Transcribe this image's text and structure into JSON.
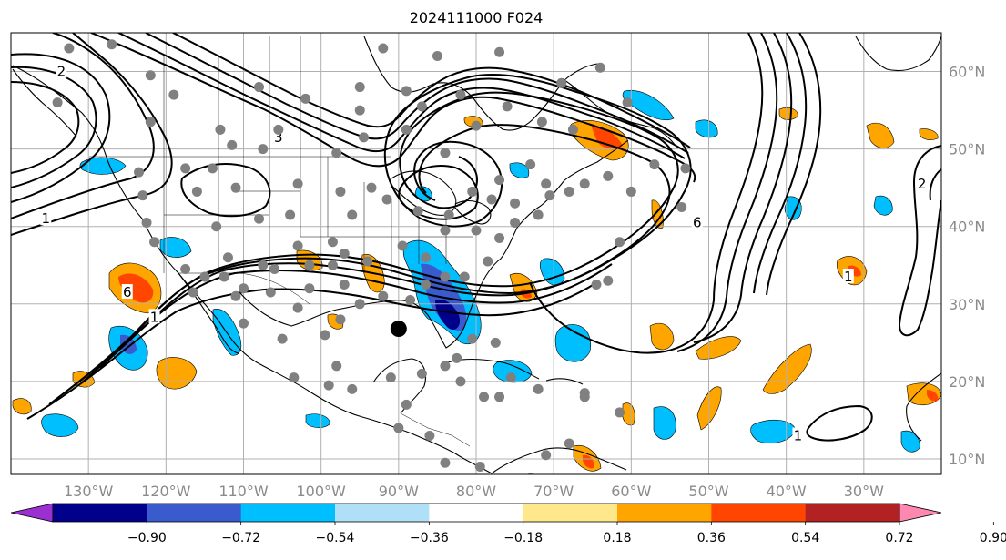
{
  "figure": {
    "title": "2024111000 F024"
  },
  "map": {
    "projection": "lat-lon",
    "lon_range": [
      -140,
      -20
    ],
    "lat_range": [
      8,
      65
    ],
    "gridlines": true,
    "lon_ticks": [
      {
        "value": -130,
        "label": "130°W"
      },
      {
        "value": -120,
        "label": "120°W"
      },
      {
        "value": -110,
        "label": "110°W"
      },
      {
        "value": -100,
        "label": "100°W"
      },
      {
        "value": -90,
        "label": "90°W"
      },
      {
        "value": -80,
        "label": "80°W"
      },
      {
        "value": -70,
        "label": "70°W"
      },
      {
        "value": -60,
        "label": "60°W"
      },
      {
        "value": -50,
        "label": "50°W"
      },
      {
        "value": -40,
        "label": "40°W"
      },
      {
        "value": -30,
        "label": "30°W"
      }
    ],
    "lat_ticks": [
      {
        "value": 60,
        "label": "60°N"
      },
      {
        "value": 50,
        "label": "50°N"
      },
      {
        "value": 40,
        "label": "40°N"
      },
      {
        "value": 30,
        "label": "30°N"
      },
      {
        "value": 20,
        "label": "20°N"
      },
      {
        "value": 10,
        "label": "10°N"
      }
    ],
    "marker": {
      "lon": -90.0,
      "lat": 26.8,
      "color": "#000000"
    },
    "contour_labels": [
      {
        "text": "3",
        "lon": -105.5,
        "lat": 51.5
      },
      {
        "text": "6",
        "lon": -125.0,
        "lat": 31.5
      },
      {
        "text": "1",
        "lon": -121.5,
        "lat": 28.3
      },
      {
        "text": "1",
        "lon": -135.5,
        "lat": 41.0
      },
      {
        "text": "2",
        "lon": -133.5,
        "lat": 60.0
      },
      {
        "text": "6",
        "lon": -51.5,
        "lat": 40.5
      },
      {
        "text": "1",
        "lon": -32.0,
        "lat": 33.5
      },
      {
        "text": "2",
        "lon": -22.5,
        "lat": 45.5
      },
      {
        "text": "1",
        "lon": -38.5,
        "lat": 13.0
      }
    ],
    "colors": {
      "background": "#ffffff",
      "grid": "#b0b0b0",
      "coast": "#000000",
      "contour": "#000000",
      "station": "#808080"
    }
  },
  "colorbar": {
    "levels": [
      -0.9,
      -0.72,
      -0.54,
      -0.36,
      -0.18,
      0.18,
      0.36,
      0.54,
      0.72,
      0.9
    ],
    "tick_labels": [
      "−0.90",
      "−0.72",
      "−0.54",
      "−0.36",
      "−0.18",
      "0.18",
      "0.36",
      "0.54",
      "0.72",
      "0.90"
    ],
    "colors": [
      "#9b30d0",
      "#00008b",
      "#3a5bcd",
      "#00bfff",
      "#b0e0f8",
      "#ffffff",
      "#ffe88c",
      "#ffa500",
      "#ff4500",
      "#b22222",
      "#ff88b0"
    ],
    "extend": "both"
  },
  "stations": [
    [
      -132.5,
      63
    ],
    [
      -127,
      63.5
    ],
    [
      -122,
      59.5
    ],
    [
      -134,
      56
    ],
    [
      -119,
      57
    ],
    [
      -122,
      53.5
    ],
    [
      -113,
      52.5
    ],
    [
      -107.5,
      50
    ],
    [
      -114,
      47.5
    ],
    [
      -116,
      44.5
    ],
    [
      -111,
      45
    ],
    [
      -113.5,
      40
    ],
    [
      -108,
      41
    ],
    [
      -103,
      45.5
    ],
    [
      -104,
      41.5
    ],
    [
      -97.5,
      44.5
    ],
    [
      -96,
      41.5
    ],
    [
      -97,
      36.5
    ],
    [
      -98.5,
      35
    ],
    [
      -101.5,
      35
    ],
    [
      -106,
      34.5
    ],
    [
      -110,
      32
    ],
    [
      -115,
      33.5
    ],
    [
      -117.5,
      34.5
    ],
    [
      -121.5,
      38
    ],
    [
      -122.5,
      40.5
    ],
    [
      -123,
      44
    ],
    [
      -123.5,
      47
    ],
    [
      -117.5,
      47.5
    ],
    [
      -111.5,
      50.5
    ],
    [
      -105.5,
      52.5
    ],
    [
      -98,
      49.5
    ],
    [
      -94.5,
      51.5
    ],
    [
      -89,
      52.5
    ],
    [
      -84,
      49.5
    ],
    [
      -80,
      53
    ],
    [
      -76,
      55.5
    ],
    [
      -71.5,
      53.5
    ],
    [
      -67.5,
      52.5
    ],
    [
      -73,
      48
    ],
    [
      -77,
      46
    ],
    [
      -80.5,
      44.5
    ],
    [
      -83.5,
      41.5
    ],
    [
      -87.5,
      42
    ],
    [
      -91.5,
      43.5
    ],
    [
      -93.5,
      45
    ],
    [
      -89.5,
      37.5
    ],
    [
      -86.5,
      36
    ],
    [
      -84,
      39.5
    ],
    [
      -80,
      39.5
    ],
    [
      -77,
      38.5
    ],
    [
      -75,
      40.5
    ],
    [
      -72,
      41.5
    ],
    [
      -70.5,
      44
    ],
    [
      -66,
      45.5
    ],
    [
      -63,
      46.5
    ],
    [
      -60,
      44.5
    ],
    [
      -57,
      48
    ],
    [
      -53,
      47.5
    ],
    [
      -78.5,
      35.5
    ],
    [
      -81.5,
      33.5
    ],
    [
      -84,
      33.5
    ],
    [
      -86.5,
      32.5
    ],
    [
      -88.5,
      30.5
    ],
    [
      -92,
      31
    ],
    [
      -95,
      30
    ],
    [
      -97.5,
      28
    ],
    [
      -97,
      32.5
    ],
    [
      -101.5,
      32
    ],
    [
      -103,
      29.5
    ],
    [
      -106.5,
      31.5
    ],
    [
      -111,
      31
    ],
    [
      -116.5,
      31.5
    ],
    [
      -110,
      27.5
    ],
    [
      -105,
      25.5
    ],
    [
      -99.5,
      26
    ],
    [
      -98,
      22
    ],
    [
      -103.5,
      20.5
    ],
    [
      -99,
      19.5
    ],
    [
      -96,
      19
    ],
    [
      -91,
      20.5
    ],
    [
      -87,
      21
    ],
    [
      -84,
      22
    ],
    [
      -82.5,
      23
    ],
    [
      -80.5,
      25.5
    ],
    [
      -77.5,
      25
    ],
    [
      -77,
      18
    ],
    [
      -72,
      19
    ],
    [
      -66,
      18.5
    ],
    [
      -61.5,
      16
    ],
    [
      -75.5,
      20.5
    ],
    [
      -82,
      20
    ],
    [
      -89,
      17
    ],
    [
      -90,
      14
    ],
    [
      -86,
      13
    ],
    [
      -84,
      9.5
    ],
    [
      -79.5,
      9
    ],
    [
      -79,
      18
    ],
    [
      -68,
      12
    ],
    [
      -71,
      10.5
    ],
    [
      -53.5,
      42.5
    ],
    [
      -60.5,
      56
    ],
    [
      -64,
      60.5
    ],
    [
      -77,
      62.5
    ],
    [
      -92,
      63
    ],
    [
      -95,
      58
    ],
    [
      -102,
      56.5
    ],
    [
      -108,
      58
    ],
    [
      -95,
      55
    ],
    [
      -87,
      55.5
    ],
    [
      -82,
      57
    ],
    [
      -69,
      58.5
    ],
    [
      -85,
      62
    ],
    [
      -89,
      57.5
    ],
    [
      -71,
      45.5
    ],
    [
      -75,
      43
    ],
    [
      -78,
      43.5
    ],
    [
      -68,
      44.5
    ],
    [
      -61.5,
      38
    ],
    [
      -63,
      33
    ],
    [
      -64.5,
      32.5
    ],
    [
      -66,
      18
    ],
    [
      -73,
      7.5
    ],
    [
      -94,
      35.5
    ],
    [
      -98.5,
      38
    ],
    [
      -103,
      37.5
    ],
    [
      -107.5,
      35
    ],
    [
      -112,
      36
    ],
    [
      -112.5,
      33.5
    ]
  ]
}
